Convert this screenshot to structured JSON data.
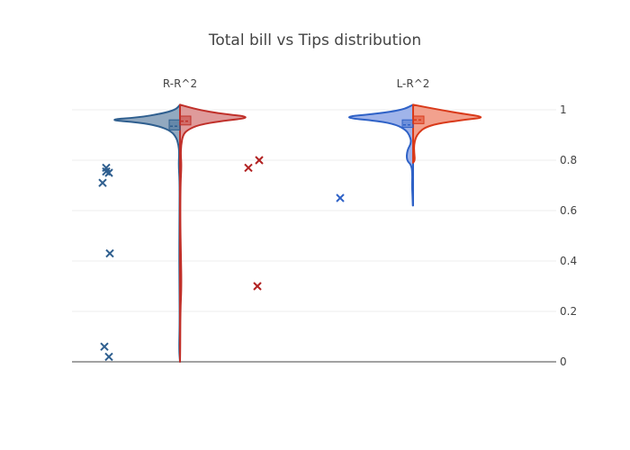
{
  "chart_data": {
    "type": "violin",
    "title": "Total bill vs Tips distribution",
    "xlabel": "",
    "ylabel": "",
    "categories": [
      "R-R^2",
      "L-R^2"
    ],
    "ylim": [
      0,
      1.03
    ],
    "yticks": [
      0,
      0.2,
      0.4,
      0.6,
      0.8,
      1
    ],
    "ytick_labels": [
      "0",
      "0.2",
      "0.4",
      "0.6",
      "0.8",
      "1"
    ],
    "y_axis_side": "right",
    "grid": true,
    "legend": "none",
    "series": [
      {
        "category": "R-R^2",
        "side": "negative",
        "fill": "#7f9ab5",
        "line": "#2f5f8f",
        "point_color": "#2f5f8f",
        "box": {
          "q1": 0.92,
          "median": 0.935,
          "q3": 0.96
        },
        "outliers": [
          0.77,
          0.75,
          0.755,
          0.71,
          0.43,
          0.06,
          0.02
        ],
        "density": [
          [
            1.02,
            0.0
          ],
          [
            1.0,
            0.06
          ],
          [
            0.985,
            0.25
          ],
          [
            0.97,
            0.55
          ],
          [
            0.96,
            1.0
          ],
          [
            0.95,
            0.55
          ],
          [
            0.935,
            0.28
          ],
          [
            0.915,
            0.12
          ],
          [
            0.89,
            0.05
          ],
          [
            0.86,
            0.02
          ],
          [
            0.83,
            0.01
          ],
          [
            0.78,
            0.018
          ],
          [
            0.72,
            0.005
          ],
          [
            0.6,
            0.006
          ],
          [
            0.43,
            0.01
          ],
          [
            0.3,
            0.007
          ],
          [
            0.15,
            0.004
          ],
          [
            0.05,
            0.012
          ],
          [
            0.0,
            0.0
          ]
        ]
      },
      {
        "category": "R-R^2",
        "side": "positive",
        "fill": "#d98a8a",
        "line": "#c0302a",
        "point_color": "#b22222",
        "box": {
          "q1": 0.94,
          "median": 0.955,
          "q3": 0.975
        },
        "outliers": [
          0.8,
          0.77,
          0.3
        ],
        "density": [
          [
            1.02,
            0.0
          ],
          [
            1.0,
            0.25
          ],
          [
            0.985,
            0.55
          ],
          [
            0.97,
            1.0
          ],
          [
            0.955,
            0.55
          ],
          [
            0.94,
            0.25
          ],
          [
            0.92,
            0.1
          ],
          [
            0.9,
            0.04
          ],
          [
            0.86,
            0.015
          ],
          [
            0.82,
            0.01
          ],
          [
            0.78,
            0.02
          ],
          [
            0.7,
            0.006
          ],
          [
            0.55,
            0.004
          ],
          [
            0.43,
            0.012
          ],
          [
            0.3,
            0.02
          ],
          [
            0.2,
            0.005
          ],
          [
            0.05,
            0.003
          ],
          [
            0.0,
            0.0
          ]
        ]
      },
      {
        "category": "L-R^2",
        "side": "negative",
        "fill": "#8fa7e6",
        "line": "#2f62c7",
        "point_color": "#2f62c7",
        "box": {
          "q1": 0.93,
          "median": 0.94,
          "q3": 0.96
        },
        "outliers": [
          0.65
        ],
        "density": [
          [
            1.02,
            0.0
          ],
          [
            1.0,
            0.14
          ],
          [
            0.985,
            0.48
          ],
          [
            0.97,
            1.0
          ],
          [
            0.955,
            0.45
          ],
          [
            0.94,
            0.22
          ],
          [
            0.92,
            0.1
          ],
          [
            0.9,
            0.05
          ],
          [
            0.87,
            0.02
          ],
          [
            0.84,
            0.08
          ],
          [
            0.8,
            0.09
          ],
          [
            0.78,
            0.02
          ],
          [
            0.74,
            0.01
          ],
          [
            0.7,
            0.015
          ],
          [
            0.66,
            0.008
          ],
          [
            0.62,
            0.004
          ]
        ]
      },
      {
        "category": "L-R^2",
        "side": "positive",
        "fill": "#f0917a",
        "line": "#d93a1a",
        "point_color": "#d93a1a",
        "box": {
          "q1": 0.945,
          "median": 0.96,
          "q3": 0.975
        },
        "outliers": [],
        "density": [
          [
            1.02,
            0.0
          ],
          [
            1.0,
            0.36
          ],
          [
            0.985,
            0.66
          ],
          [
            0.97,
            1.0
          ],
          [
            0.96,
            0.68
          ],
          [
            0.945,
            0.33
          ],
          [
            0.93,
            0.16
          ],
          [
            0.91,
            0.08
          ],
          [
            0.89,
            0.035
          ],
          [
            0.86,
            0.012
          ],
          [
            0.83,
            0.015
          ],
          [
            0.8,
            0.025
          ],
          [
            0.79,
            0.0
          ]
        ]
      }
    ]
  }
}
